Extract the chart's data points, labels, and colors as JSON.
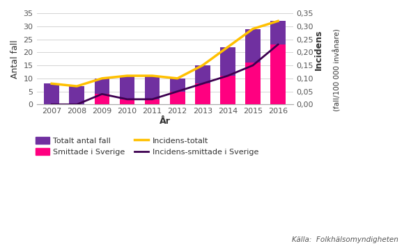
{
  "years": [
    2007,
    2008,
    2009,
    2010,
    2011,
    2012,
    2013,
    2014,
    2015,
    2016
  ],
  "totalt_antal_fall": [
    8,
    7,
    10,
    11,
    11,
    10,
    15,
    22,
    29,
    32
  ],
  "smittade_i_sverige": [
    0,
    0,
    4,
    2,
    2,
    5,
    8,
    11,
    16,
    23
  ],
  "incidens_totalt": [
    0.08,
    0.07,
    0.1,
    0.11,
    0.11,
    0.1,
    0.15,
    0.22,
    0.29,
    0.32
  ],
  "incidens_smittade": [
    0.0,
    0.0,
    0.04,
    0.02,
    0.02,
    0.05,
    0.08,
    0.11,
    0.15,
    0.23
  ],
  "color_totalt": "#7030A0",
  "color_smittade": "#FF0080",
  "color_inc_totalt": "#FFC000",
  "color_inc_smittade": "#3D0050",
  "ylabel_left": "Antal fall",
  "ylabel_right_bold": "Incidens",
  "ylabel_right_normal": "\n(fall/100 000 invånare)",
  "xlabel": "År",
  "ylim_left": [
    0,
    35
  ],
  "ylim_right": [
    0,
    0.35
  ],
  "yticks_left": [
    0,
    5,
    10,
    15,
    20,
    25,
    30,
    35
  ],
  "yticks_right": [
    0.0,
    0.05,
    0.1,
    0.15,
    0.2,
    0.25,
    0.3,
    0.35
  ],
  "ytick_labels_right": [
    "0,00",
    "0,05",
    "0,10",
    "0,15",
    "0,20",
    "0,25",
    "0,30",
    "0,35"
  ],
  "ytick_labels_left": [
    "0",
    "5",
    "10",
    "15",
    "20",
    "25",
    "30",
    "35"
  ],
  "legend_labels": [
    "Totalt antal fall",
    "Smittade i Sverige",
    "Incidens-totalt",
    "Incidens-smittade i Sverige"
  ],
  "source_text": "Källa:  Folkhälsomyndigheten",
  "bar_width": 0.6
}
